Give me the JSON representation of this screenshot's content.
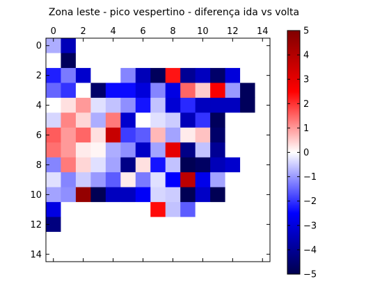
{
  "chart_data": {
    "type": "heatmap",
    "title": "Zona leste - pico vespertino - diferença ida vs volta",
    "xlabel": "",
    "ylabel": "",
    "x_axis_position": "top",
    "xlim": [
      -0.5,
      14.5
    ],
    "ylim": [
      14.5,
      -0.5
    ],
    "x_ticks": [
      0,
      2,
      4,
      6,
      8,
      10,
      12,
      14
    ],
    "y_ticks": [
      0,
      2,
      4,
      6,
      8,
      10,
      12,
      14
    ],
    "grid": false,
    "colormap": "seismic",
    "vmin": -5,
    "vmax": 5,
    "colorbar_ticks": [
      5,
      4,
      3,
      2,
      1,
      0,
      -1,
      -2,
      -3,
      -4,
      -5
    ],
    "colorbar_tick_labels": [
      "5",
      "4",
      "3",
      "2",
      "1",
      "0",
      "−1",
      "−2",
      "−3",
      "−4",
      "−5"
    ],
    "colorbar_position": "right",
    "rows": 15,
    "cols": 15,
    "values": [
      [
        -0.8,
        -3.5,
        0,
        0,
        0,
        0,
        0,
        0,
        0,
        0,
        0,
        0,
        0,
        0,
        0
      ],
      [
        0,
        -4.8,
        0,
        0,
        0,
        0,
        0,
        0,
        0,
        0,
        0,
        0,
        0,
        0,
        0
      ],
      [
        -2.2,
        -1.3,
        -3.2,
        0,
        0,
        -1.2,
        -3.5,
        -4.8,
        2.3,
        -4.0,
        -3.4,
        -4.6,
        -3.0,
        0,
        0
      ],
      [
        -1.5,
        -2.0,
        0,
        -4.6,
        -2.4,
        -2.4,
        -3.0,
        -1.2,
        -2.9,
        1.5,
        0.5,
        2.6,
        -1.0,
        -4.8,
        0
      ],
      [
        0,
        0.3,
        1.0,
        -0.3,
        -0.6,
        -1.1,
        -2.3,
        -0.6,
        -3.1,
        -2.1,
        -3.4,
        -3.4,
        -3.4,
        -4.8,
        0
      ],
      [
        -0.4,
        1.2,
        0.4,
        -0.8,
        1.3,
        -3.2,
        0,
        -0.3,
        -0.5,
        -3.5,
        -2.0,
        -4.8,
        0,
        0,
        0
      ],
      [
        1.6,
        1.0,
        1.5,
        0.3,
        3.6,
        -1.9,
        -1.6,
        0.7,
        -0.9,
        0.2,
        0.6,
        -4.6,
        0,
        0,
        0
      ],
      [
        1.4,
        1.0,
        0.2,
        0.1,
        -0.8,
        -1.1,
        -3.3,
        -0.9,
        3.0,
        -4.2,
        -0.6,
        -4.0,
        0,
        0,
        0
      ],
      [
        -1.2,
        1.3,
        0.4,
        -0.3,
        -0.9,
        -4.2,
        0.3,
        -2.3,
        -0.6,
        -4.9,
        -4.7,
        -3.5,
        -3.2,
        0,
        0
      ],
      [
        -0.3,
        -1.2,
        -0.5,
        -1.0,
        -1.6,
        0.2,
        -1.3,
        -0.3,
        -2.5,
        3.8,
        -2.8,
        -0.9,
        0,
        0,
        0
      ],
      [
        -0.9,
        -1.1,
        4.6,
        -4.9,
        -3.4,
        -3.4,
        -2.6,
        -0.4,
        -0.5,
        -4.9,
        -3.3,
        -4.9,
        0,
        0,
        0
      ],
      [
        -2.9,
        0,
        0,
        0,
        0,
        0,
        0,
        2.4,
        -0.6,
        -1.6,
        0,
        0,
        0,
        0,
        0
      ],
      [
        -4.3,
        0,
        0,
        0,
        0,
        0,
        0,
        0,
        0,
        0,
        0,
        0,
        0,
        0,
        0
      ],
      [
        0,
        0,
        0,
        0,
        0,
        0,
        0,
        0,
        0,
        0,
        0,
        0,
        0,
        0,
        0
      ],
      [
        0,
        0,
        0,
        0,
        0,
        0,
        0,
        0,
        0,
        0,
        0,
        0,
        0,
        0,
        0
      ]
    ]
  }
}
